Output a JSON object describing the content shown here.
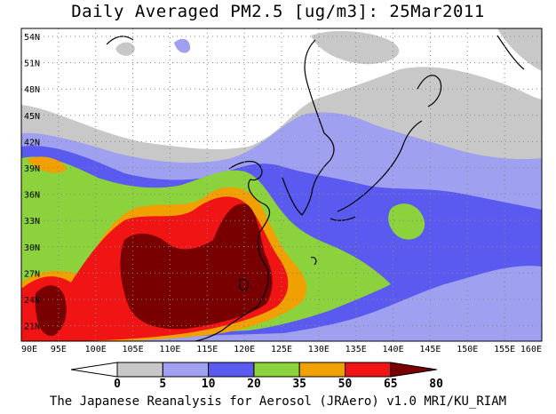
{
  "title": "Daily Averaged PM2.5 [ug/m3]: 25Mar2011",
  "footer": "The Japanese Reanalysis for Aerosol (JRAero) v1.0 MRI/KU_RIAM",
  "map": {
    "lat_labels": [
      "54N",
      "51N",
      "48N",
      "45N",
      "42N",
      "39N",
      "36N",
      "33N",
      "30N",
      "27N",
      "24N",
      "21N"
    ],
    "lon_labels": [
      "90E",
      "95E",
      "100E",
      "105E",
      "110E",
      "115E",
      "120E",
      "125E",
      "130E",
      "135E",
      "140E",
      "145E",
      "150E",
      "155E",
      "160E"
    ]
  },
  "colorbar": {
    "ticks": [
      "0",
      "5",
      "10",
      "20",
      "35",
      "50",
      "65",
      "80"
    ],
    "colors": [
      "#ffffff",
      "#c8c8c8",
      "#a0a0f0",
      "#5a5af0",
      "#8cd23c",
      "#f0a000",
      "#f01414",
      "#780000"
    ]
  },
  "palette": {
    "gray": "#c8c8c8",
    "light_blue": "#a0a0f0",
    "blue": "#5a5af0",
    "green": "#8cd23c",
    "orange": "#f0a000",
    "red": "#f01414",
    "dark_red": "#780000"
  }
}
